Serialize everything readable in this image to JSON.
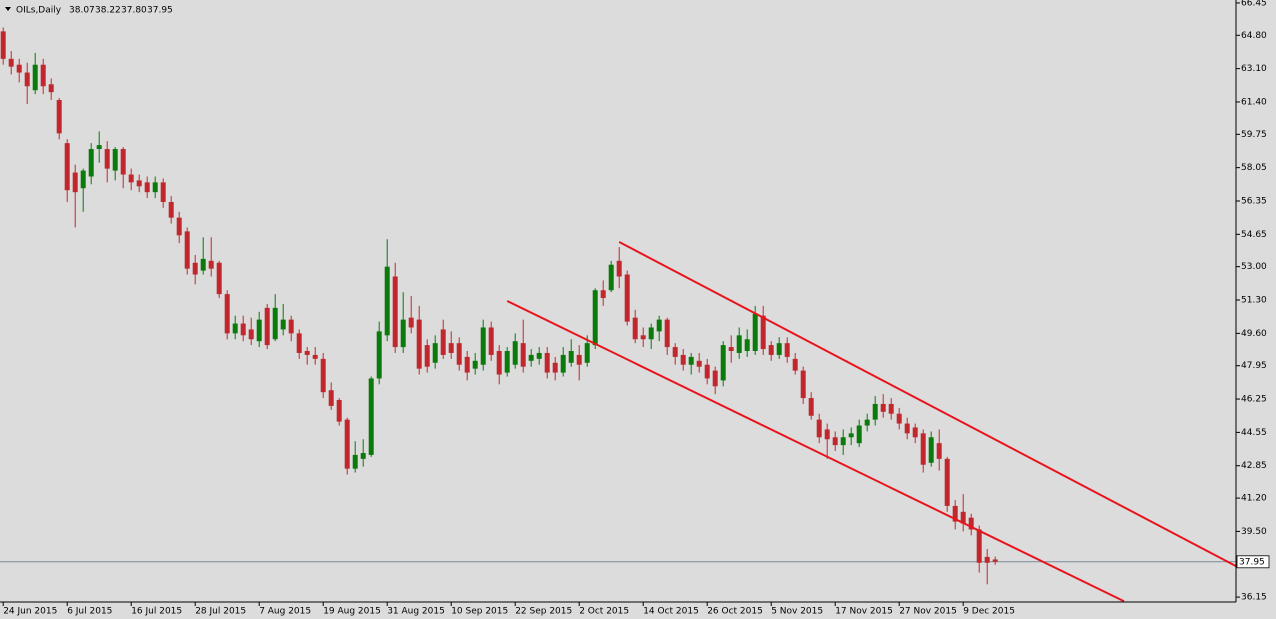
{
  "chart_data": {
    "type": "candlestick",
    "title": "OILs,Daily",
    "header_ohlc": [
      "38.07",
      "38.22",
      "37.80",
      "37.95"
    ],
    "categories": [
      "24 Jun 2015",
      null,
      null,
      null,
      null,
      null,
      null,
      null,
      "6 Jul 2015",
      null,
      null,
      null,
      null,
      null,
      null,
      null,
      "16 Jul 2015",
      null,
      null,
      null,
      null,
      null,
      null,
      null,
      "28 Jul 2015",
      null,
      null,
      null,
      null,
      null,
      null,
      null,
      "7 Aug 2015",
      null,
      null,
      null,
      null,
      null,
      null,
      null,
      "19 Aug 2015",
      null,
      null,
      null,
      null,
      null,
      null,
      null,
      "31 Aug 2015",
      null,
      null,
      null,
      null,
      null,
      null,
      null,
      "10 Sep 2015",
      null,
      null,
      null,
      null,
      null,
      null,
      null,
      "22 Sep 2015",
      null,
      null,
      null,
      null,
      null,
      null,
      null,
      "2 Oct 2015",
      null,
      null,
      null,
      null,
      null,
      null,
      null,
      "14 Oct 2015",
      null,
      null,
      null,
      null,
      null,
      null,
      null,
      "26 Oct 2015",
      null,
      null,
      null,
      null,
      null,
      null,
      null,
      "5 Nov 2015",
      null,
      null,
      null,
      null,
      null,
      null,
      null,
      "17 Nov 2015",
      null,
      null,
      null,
      null,
      null,
      null,
      null,
      "27 Nov 2015",
      null,
      null,
      null,
      null,
      null,
      null,
      null,
      "9 Dec 2015",
      null,
      null,
      null,
      null
    ],
    "open": [
      65.0,
      63.6,
      63.3,
      62.9,
      62.0,
      63.3,
      62.3,
      61.5,
      59.3,
      57.8,
      57.0,
      57.6,
      59.0,
      59.0,
      57.9,
      59.0,
      57.7,
      57.4,
      57.3,
      56.8,
      57.3,
      56.3,
      55.5,
      54.8,
      53.2,
      52.8,
      53.3,
      53.2,
      51.6,
      49.6,
      50.1,
      49.8,
      49.2,
      50.9,
      49.3,
      49.8,
      50.3,
      49.6,
      48.7,
      48.5,
      48.3,
      46.7,
      46.2,
      45.2,
      42.7,
      43.2,
      43.4,
      47.3,
      49.5,
      52.5,
      48.9,
      50.4,
      50.3,
      49.0,
      48.1,
      49.8,
      49.1,
      49.1,
      48.4,
      47.8,
      48.0,
      49.9,
      48.7,
      47.6,
      48.0,
      49.1,
      48.2,
      48.3,
      48.6,
      48.1,
      47.6,
      48.1,
      48.5,
      48.1,
      49.0,
      51.8,
      51.8,
      53.3,
      52.6,
      50.4,
      49.5,
      49.3,
      49.7,
      50.3,
      48.9,
      48.5,
      48.0,
      48.2,
      48.0,
      47.7,
      47.2,
      48.9,
      48.6,
      48.7,
      48.7,
      50.5,
      49.0,
      48.5,
      49.1,
      48.3,
      47.7,
      46.3,
      45.2,
      44.7,
      44.3,
      43.9,
      44.3,
      44.0,
      44.9,
      45.2,
      46.0,
      46.0,
      45.5,
      45.0,
      44.8,
      44.5,
      43.0,
      44.0,
      43.2,
      40.8,
      40.5,
      40.2,
      39.6,
      38.2,
      38.07
    ],
    "high": [
      65.2,
      64.0,
      63.6,
      63.4,
      63.9,
      63.6,
      62.6,
      61.6,
      59.5,
      58.2,
      58.0,
      59.3,
      59.9,
      59.4,
      59.1,
      59.1,
      58.0,
      57.7,
      57.6,
      57.6,
      57.5,
      56.6,
      55.8,
      55.0,
      53.6,
      54.5,
      54.5,
      53.3,
      51.8,
      50.5,
      50.5,
      50.4,
      50.7,
      51.1,
      51.6,
      51.1,
      50.5,
      49.8,
      48.9,
      48.9,
      48.6,
      47.1,
      46.3,
      45.3,
      44.1,
      44.2,
      47.4,
      50.2,
      54.4,
      53.2,
      51.7,
      51.5,
      51.0,
      49.3,
      49.5,
      50.3,
      49.7,
      49.4,
      48.7,
      48.6,
      50.3,
      50.2,
      49.0,
      48.9,
      49.6,
      50.3,
      48.8,
      48.9,
      48.9,
      48.4,
      48.9,
      49.3,
      49.0,
      49.5,
      51.9,
      52.3,
      53.3,
      54.0,
      52.8,
      50.8,
      49.9,
      50.1,
      50.5,
      50.4,
      49.1,
      48.8,
      48.6,
      48.6,
      48.3,
      47.9,
      49.2,
      49.5,
      49.9,
      49.8,
      51.0,
      51.0,
      49.2,
      49.4,
      49.4,
      48.6,
      47.9,
      46.6,
      45.5,
      45.0,
      44.6,
      44.7,
      44.8,
      45.2,
      45.5,
      46.4,
      46.5,
      46.3,
      45.8,
      45.3,
      45.0,
      44.7,
      44.6,
      44.7,
      43.3,
      41.1,
      41.4,
      40.4,
      39.8,
      38.6,
      38.22
    ],
    "low": [
      63.3,
      62.8,
      62.4,
      61.3,
      61.8,
      61.8,
      61.5,
      59.5,
      56.3,
      55.0,
      55.8,
      57.2,
      58.3,
      57.3,
      57.4,
      57.0,
      56.9,
      56.8,
      56.5,
      56.5,
      56.0,
      55.2,
      54.2,
      52.6,
      52.1,
      52.6,
      52.5,
      51.4,
      49.3,
      49.3,
      49.2,
      49.0,
      48.9,
      48.8,
      49.2,
      49.5,
      49.2,
      48.3,
      48.0,
      48.0,
      46.3,
      45.7,
      44.9,
      42.4,
      42.5,
      42.8,
      43.3,
      47.0,
      49.2,
      48.6,
      48.6,
      49.6,
      47.5,
      47.6,
      47.8,
      48.3,
      48.3,
      47.7,
      47.2,
      47.5,
      47.7,
      48.2,
      47.0,
      47.4,
      47.8,
      47.6,
      47.9,
      48.0,
      47.3,
      47.2,
      47.4,
      47.9,
      47.2,
      47.9,
      48.8,
      51.0,
      51.7,
      51.9,
      50.0,
      49.1,
      48.9,
      48.8,
      49.2,
      48.5,
      48.0,
      47.7,
      47.5,
      47.6,
      47.0,
      46.5,
      46.9,
      48.1,
      48.3,
      48.4,
      48.5,
      48.5,
      48.2,
      48.3,
      48.1,
      47.5,
      46.0,
      45.2,
      44.0,
      43.2,
      43.6,
      43.4,
      43.9,
      43.8,
      44.6,
      44.9,
      45.3,
      45.2,
      44.7,
      44.2,
      44.0,
      42.5,
      42.8,
      42.6,
      40.5,
      39.6,
      39.5,
      39.3,
      37.4,
      36.8,
      37.8
    ],
    "close": [
      63.6,
      63.2,
      62.9,
      62.2,
      63.3,
      62.2,
      61.9,
      59.8,
      56.9,
      56.8,
      57.9,
      59.0,
      59.2,
      58.0,
      59.0,
      57.7,
      57.3,
      57.1,
      56.8,
      57.3,
      56.3,
      55.5,
      54.6,
      52.9,
      52.6,
      53.4,
      52.9,
      51.6,
      49.6,
      50.1,
      49.5,
      49.3,
      50.3,
      49.0,
      50.9,
      50.3,
      49.6,
      48.6,
      48.5,
      48.3,
      46.6,
      45.9,
      45.1,
      42.7,
      43.4,
      43.5,
      47.3,
      49.7,
      53.0,
      48.9,
      50.3,
      49.9,
      47.8,
      47.9,
      49.1,
      48.5,
      48.6,
      48.0,
      47.6,
      48.2,
      49.9,
      48.5,
      47.5,
      48.7,
      49.2,
      47.9,
      48.5,
      48.6,
      47.6,
      47.6,
      48.5,
      48.7,
      48.0,
      49.1,
      51.8,
      51.4,
      53.1,
      52.5,
      50.2,
      49.3,
      49.3,
      49.9,
      50.3,
      48.9,
      48.4,
      48.0,
      48.4,
      47.9,
      47.3,
      46.9,
      49.0,
      48.7,
      49.5,
      49.3,
      50.6,
      48.8,
      48.5,
      49.1,
      48.4,
      47.7,
      46.3,
      45.4,
      44.3,
      44.2,
      43.9,
      44.3,
      44.5,
      44.9,
      45.2,
      46.0,
      45.6,
      45.5,
      45.0,
      44.5,
      44.3,
      42.9,
      44.3,
      43.2,
      40.8,
      40.0,
      39.9,
      39.6,
      37.9,
      37.9,
      37.95
    ],
    "up_color": "#0a7a0a",
    "down_color": "#c1272d",
    "xlim": [
      -0.4,
      154.1
    ],
    "ylim": [
      35.9,
      66.6
    ],
    "yticks": [
      66.45,
      {
        "value": 64.8,
        "label": "64.80"
      },
      {
        "value": 63.1,
        "label": "63.10"
      },
      {
        "value": 61.4,
        "label": "61.40"
      },
      59.75,
      58.05,
      56.35,
      54.65,
      {
        "value": 53.0,
        "label": "53.00"
      },
      {
        "value": 51.3,
        "label": "51.30"
      },
      {
        "value": 49.6,
        "label": "49.60"
      },
      47.95,
      46.25,
      44.55,
      42.85,
      {
        "value": 41.2,
        "label": "41.20"
      },
      {
        "value": 39.5,
        "label": "39.50"
      },
      36.15
    ],
    "current_price": 37.95,
    "trend_lines": {
      "color": "#e8141c",
      "lines": [
        {
          "x": [
            77,
            154.1
          ],
          "y": [
            54.26,
            37.73
          ]
        },
        {
          "x": [
            63,
            140.1
          ],
          "y": [
            51.25,
            35.94
          ]
        }
      ]
    }
  }
}
